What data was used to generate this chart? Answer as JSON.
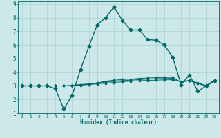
{
  "xlabel": "Humidex (Indice chaleur)",
  "xlim": [
    -0.5,
    23.5
  ],
  "ylim": [
    1,
    9.2
  ],
  "xticks": [
    0,
    1,
    2,
    3,
    4,
    5,
    6,
    7,
    8,
    9,
    10,
    11,
    12,
    13,
    14,
    15,
    16,
    17,
    18,
    19,
    20,
    21,
    22,
    23
  ],
  "yticks": [
    1,
    2,
    3,
    4,
    5,
    6,
    7,
    8,
    9
  ],
  "bg_color": "#cde8e8",
  "line_color": "#006666",
  "grid_color": "#b0d4d4",
  "lines": [
    {
      "x": [
        0,
        1,
        2,
        3,
        4,
        5,
        6,
        7,
        8,
        9,
        10,
        11,
        12,
        13,
        14,
        15,
        16,
        17,
        18,
        19,
        20,
        21,
        22,
        23
      ],
      "y": [
        3.0,
        3.0,
        3.0,
        3.0,
        2.8,
        1.3,
        2.3,
        4.2,
        5.9,
        7.5,
        8.0,
        8.8,
        7.8,
        7.1,
        7.1,
        6.4,
        6.35,
        6.0,
        5.1,
        3.1,
        3.8,
        2.6,
        3.0,
        3.4
      ],
      "markersize": 2.5,
      "linewidth": 1.0
    },
    {
      "x": [
        0,
        1,
        2,
        3,
        4,
        5,
        6,
        7,
        8,
        9,
        10,
        11,
        12,
        13,
        14,
        15,
        16,
        17,
        18,
        19,
        20,
        21,
        22,
        23
      ],
      "y": [
        3.0,
        3.0,
        3.0,
        3.0,
        3.0,
        3.0,
        3.0,
        3.05,
        3.1,
        3.15,
        3.2,
        3.25,
        3.3,
        3.35,
        3.38,
        3.4,
        3.42,
        3.44,
        3.45,
        3.3,
        3.4,
        3.2,
        3.0,
        3.35
      ],
      "markersize": 1.5,
      "linewidth": 0.7
    },
    {
      "x": [
        0,
        1,
        2,
        3,
        4,
        5,
        6,
        7,
        8,
        9,
        10,
        11,
        12,
        13,
        14,
        15,
        16,
        17,
        18,
        19,
        20,
        21,
        22,
        23
      ],
      "y": [
        3.0,
        3.0,
        3.0,
        3.0,
        3.0,
        3.0,
        3.02,
        3.07,
        3.12,
        3.18,
        3.28,
        3.34,
        3.38,
        3.42,
        3.46,
        3.5,
        3.52,
        3.54,
        3.55,
        3.28,
        3.38,
        3.18,
        2.98,
        3.38
      ],
      "markersize": 1.5,
      "linewidth": 0.7
    },
    {
      "x": [
        0,
        1,
        2,
        3,
        4,
        5,
        6,
        7,
        8,
        9,
        10,
        11,
        12,
        13,
        14,
        15,
        16,
        17,
        18,
        19,
        20,
        21,
        22,
        23
      ],
      "y": [
        3.0,
        3.0,
        3.0,
        3.0,
        3.0,
        3.0,
        3.04,
        3.1,
        3.15,
        3.22,
        3.34,
        3.42,
        3.46,
        3.5,
        3.54,
        3.58,
        3.6,
        3.62,
        3.63,
        3.26,
        3.42,
        3.22,
        3.02,
        3.42
      ],
      "markersize": 1.5,
      "linewidth": 0.7
    }
  ]
}
